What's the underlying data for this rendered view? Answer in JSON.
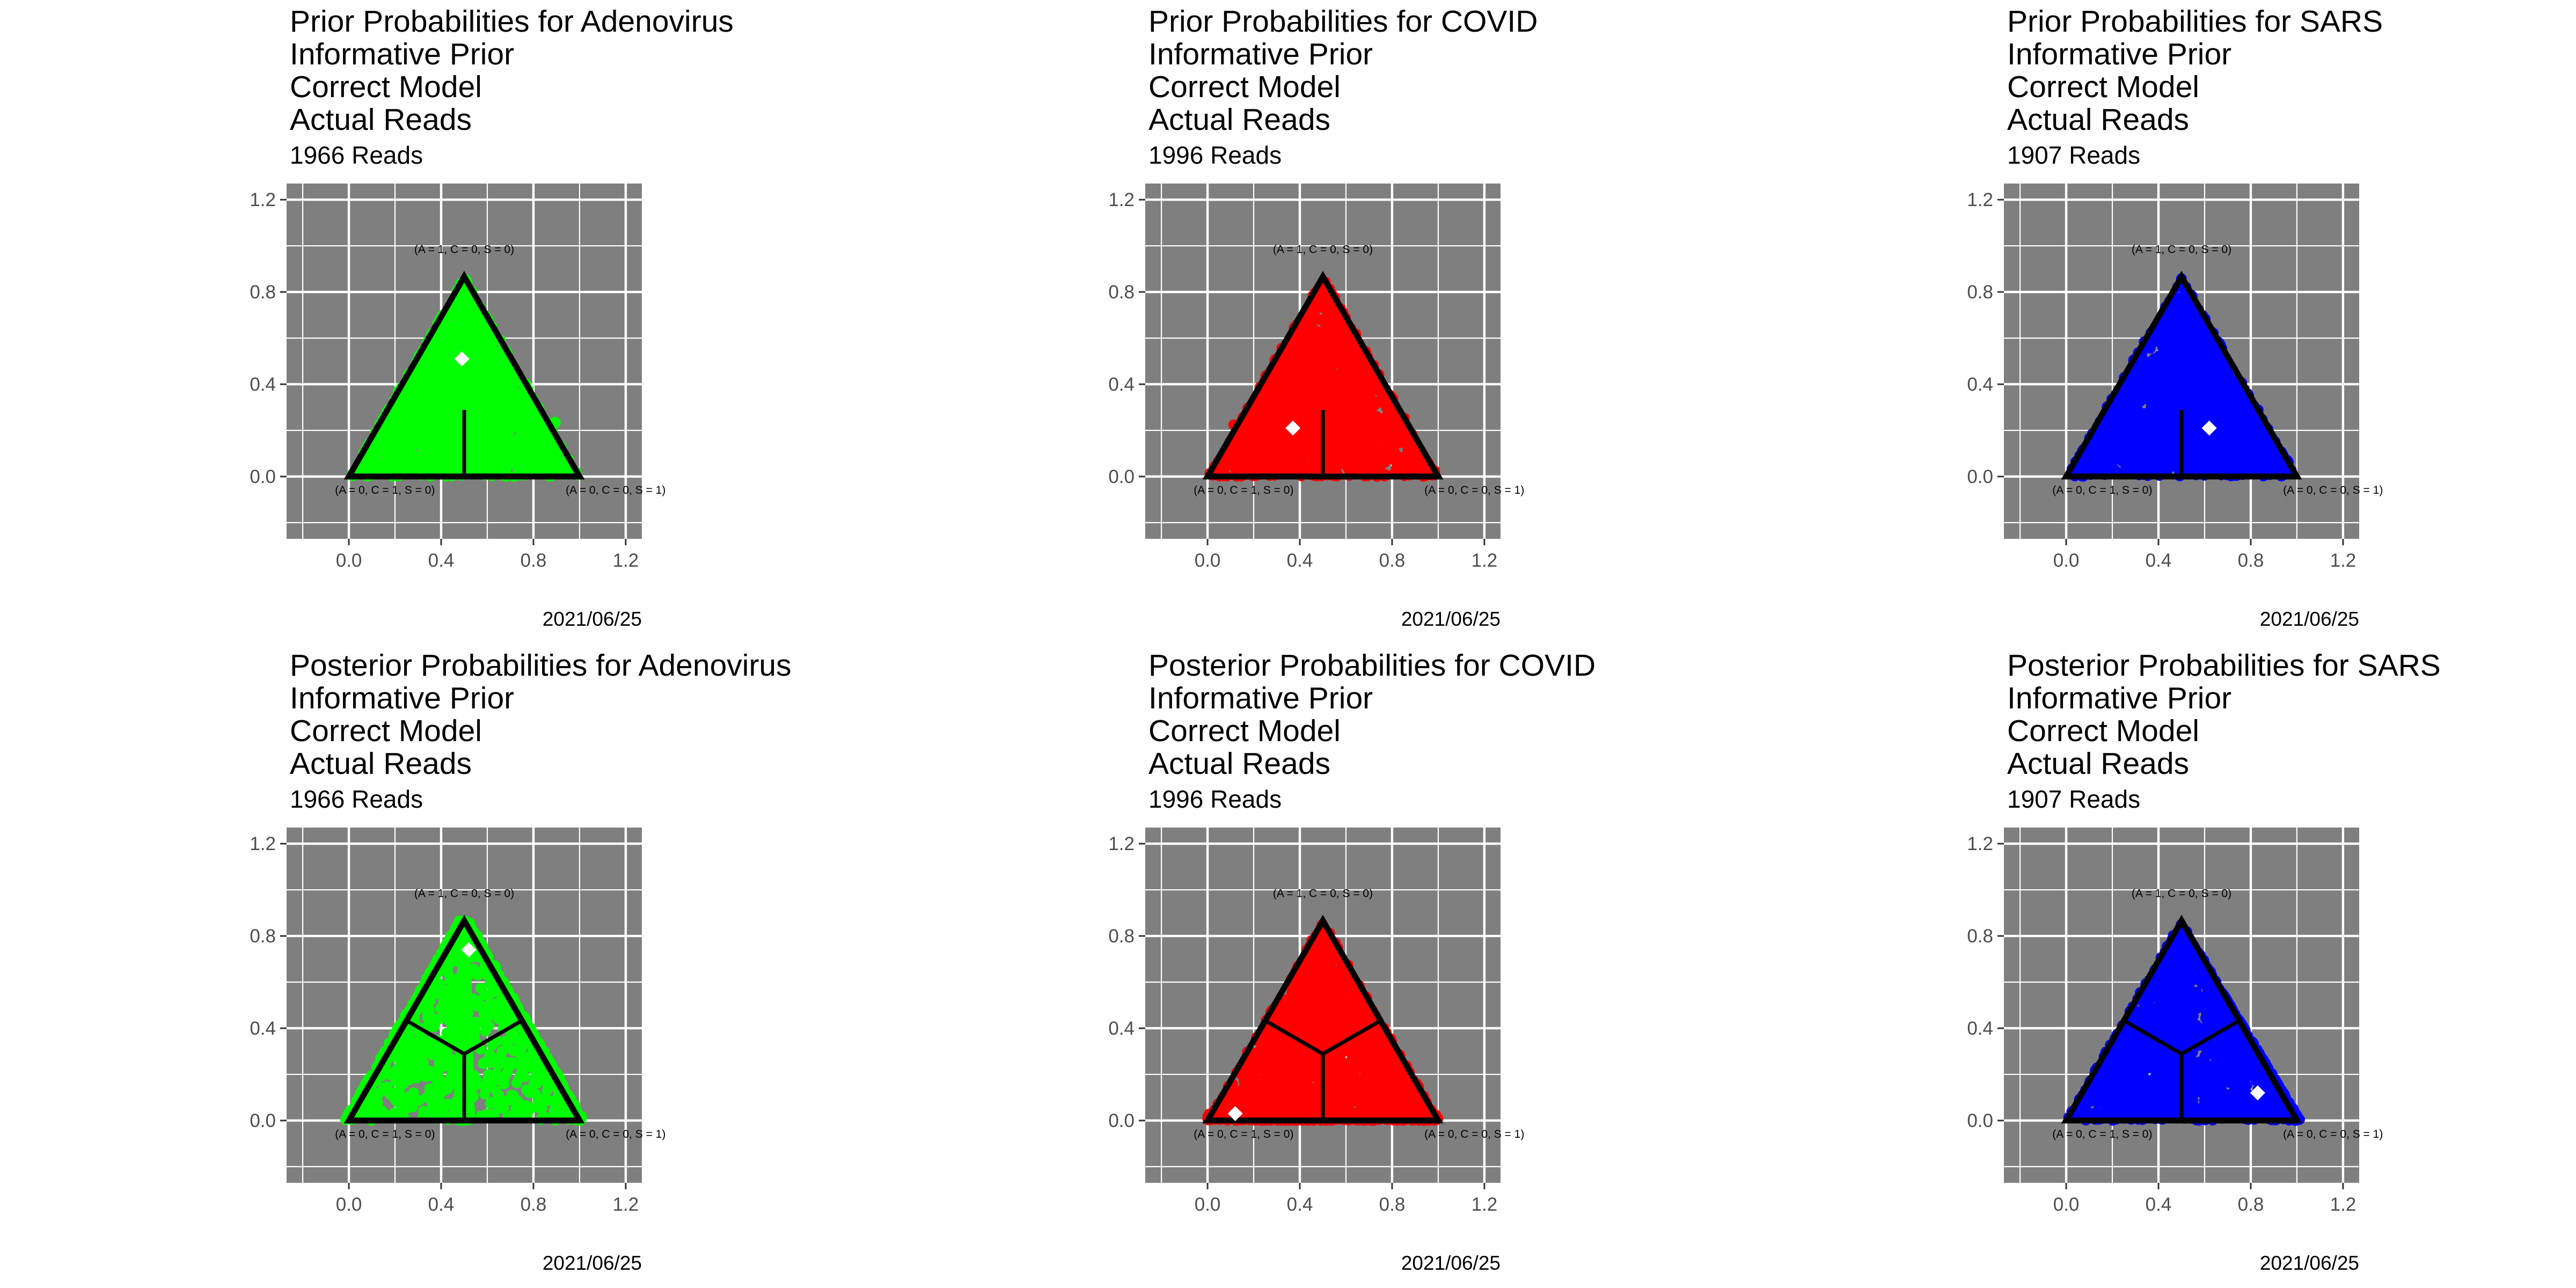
{
  "chart_data": [
    {
      "type": "scatter",
      "title_lines": [
        "Prior Probabilities for Adenovirus",
        "Informative Prior",
        "Correct Model",
        "Actual Reads"
      ],
      "subtitle": "1966 Reads",
      "caption": "2021/06/25",
      "color": "#00ff00",
      "kind": "prior",
      "mean_marker": [
        0.49,
        0.51
      ],
      "xlim": [
        -0.27,
        1.27
      ],
      "ylim": [
        -0.27,
        1.27
      ],
      "x_ticks": [
        "0.0",
        "0.4",
        "0.8",
        "1.2"
      ],
      "y_ticks": [
        "0.0",
        "0.4",
        "0.8",
        "1.2"
      ],
      "vertex_labels": {
        "top": "(A = 1, C = 0, S = 0)",
        "left": "(A = 0, C = 1, S = 0)",
        "right": "(A = 0, C = 0, S = 1)"
      }
    },
    {
      "type": "scatter",
      "title_lines": [
        "Prior Probabilities for COVID",
        "Informative Prior",
        "Correct Model",
        "Actual Reads"
      ],
      "subtitle": "1996 Reads",
      "caption": "2021/06/25",
      "color": "#ff0000",
      "kind": "prior",
      "mean_marker": [
        0.37,
        0.21
      ],
      "xlim": [
        -0.27,
        1.27
      ],
      "ylim": [
        -0.27,
        1.27
      ],
      "x_ticks": [
        "0.0",
        "0.4",
        "0.8",
        "1.2"
      ],
      "y_ticks": [
        "0.0",
        "0.4",
        "0.8",
        "1.2"
      ],
      "vertex_labels": {
        "top": "(A = 1, C = 0, S = 0)",
        "left": "(A = 0, C = 1, S = 0)",
        "right": "(A = 0, C = 0, S = 1)"
      }
    },
    {
      "type": "scatter",
      "title_lines": [
        "Prior Probabilities for SARS",
        "Informative Prior",
        "Correct Model",
        "Actual Reads"
      ],
      "subtitle": "1907 Reads",
      "caption": "2021/06/25",
      "color": "#0000ff",
      "kind": "prior",
      "mean_marker": [
        0.62,
        0.21
      ],
      "xlim": [
        -0.27,
        1.27
      ],
      "ylim": [
        -0.27,
        1.27
      ],
      "x_ticks": [
        "0.0",
        "0.4",
        "0.8",
        "1.2"
      ],
      "y_ticks": [
        "0.0",
        "0.4",
        "0.8",
        "1.2"
      ],
      "vertex_labels": {
        "top": "(A = 1, C = 0, S = 0)",
        "left": "(A = 0, C = 1, S = 0)",
        "right": "(A = 0, C = 0, S = 1)"
      }
    },
    {
      "type": "scatter",
      "title_lines": [
        "Posterior Probabilities for Adenovirus",
        "Informative Prior",
        "Correct Model",
        "Actual Reads"
      ],
      "subtitle": "1966 Reads",
      "caption": "2021/06/25",
      "color": "#00ff00",
      "kind": "posterior",
      "mean_marker": [
        0.52,
        0.74
      ],
      "xlim": [
        -0.27,
        1.27
      ],
      "ylim": [
        -0.27,
        1.27
      ],
      "x_ticks": [
        "0.0",
        "0.4",
        "0.8",
        "1.2"
      ],
      "y_ticks": [
        "0.0",
        "0.4",
        "0.8",
        "1.2"
      ],
      "vertex_labels": {
        "top": "(A = 1, C = 0, S = 0)",
        "left": "(A = 0, C = 1, S = 0)",
        "right": "(A = 0, C = 0, S = 1)"
      }
    },
    {
      "type": "scatter",
      "title_lines": [
        "Posterior Probabilities for COVID",
        "Informative Prior",
        "Correct Model",
        "Actual Reads"
      ],
      "subtitle": "1996 Reads",
      "caption": "2021/06/25",
      "color": "#ff0000",
      "kind": "posterior",
      "mean_marker": [
        0.12,
        0.03
      ],
      "xlim": [
        -0.27,
        1.27
      ],
      "ylim": [
        -0.27,
        1.27
      ],
      "x_ticks": [
        "0.0",
        "0.4",
        "0.8",
        "1.2"
      ],
      "y_ticks": [
        "0.0",
        "0.4",
        "0.8",
        "1.2"
      ],
      "vertex_labels": {
        "top": "(A = 1, C = 0, S = 0)",
        "left": "(A = 0, C = 1, S = 0)",
        "right": "(A = 0, C = 0, S = 1)"
      }
    },
    {
      "type": "scatter",
      "title_lines": [
        "Posterior Probabilities for SARS",
        "Informative Prior",
        "Correct Model",
        "Actual Reads"
      ],
      "subtitle": "1907 Reads",
      "caption": "2021/06/25",
      "color": "#0000ff",
      "kind": "posterior",
      "mean_marker": [
        0.83,
        0.12
      ],
      "xlim": [
        -0.27,
        1.27
      ],
      "ylim": [
        -0.27,
        1.27
      ],
      "x_ticks": [
        "0.0",
        "0.4",
        "0.8",
        "1.2"
      ],
      "y_ticks": [
        "0.0",
        "0.4",
        "0.8",
        "1.2"
      ],
      "vertex_labels": {
        "top": "(A = 1, C = 0, S = 0)",
        "left": "(A = 0, C = 1, S = 0)",
        "right": "(A = 0, C = 0, S = 1)"
      }
    }
  ]
}
